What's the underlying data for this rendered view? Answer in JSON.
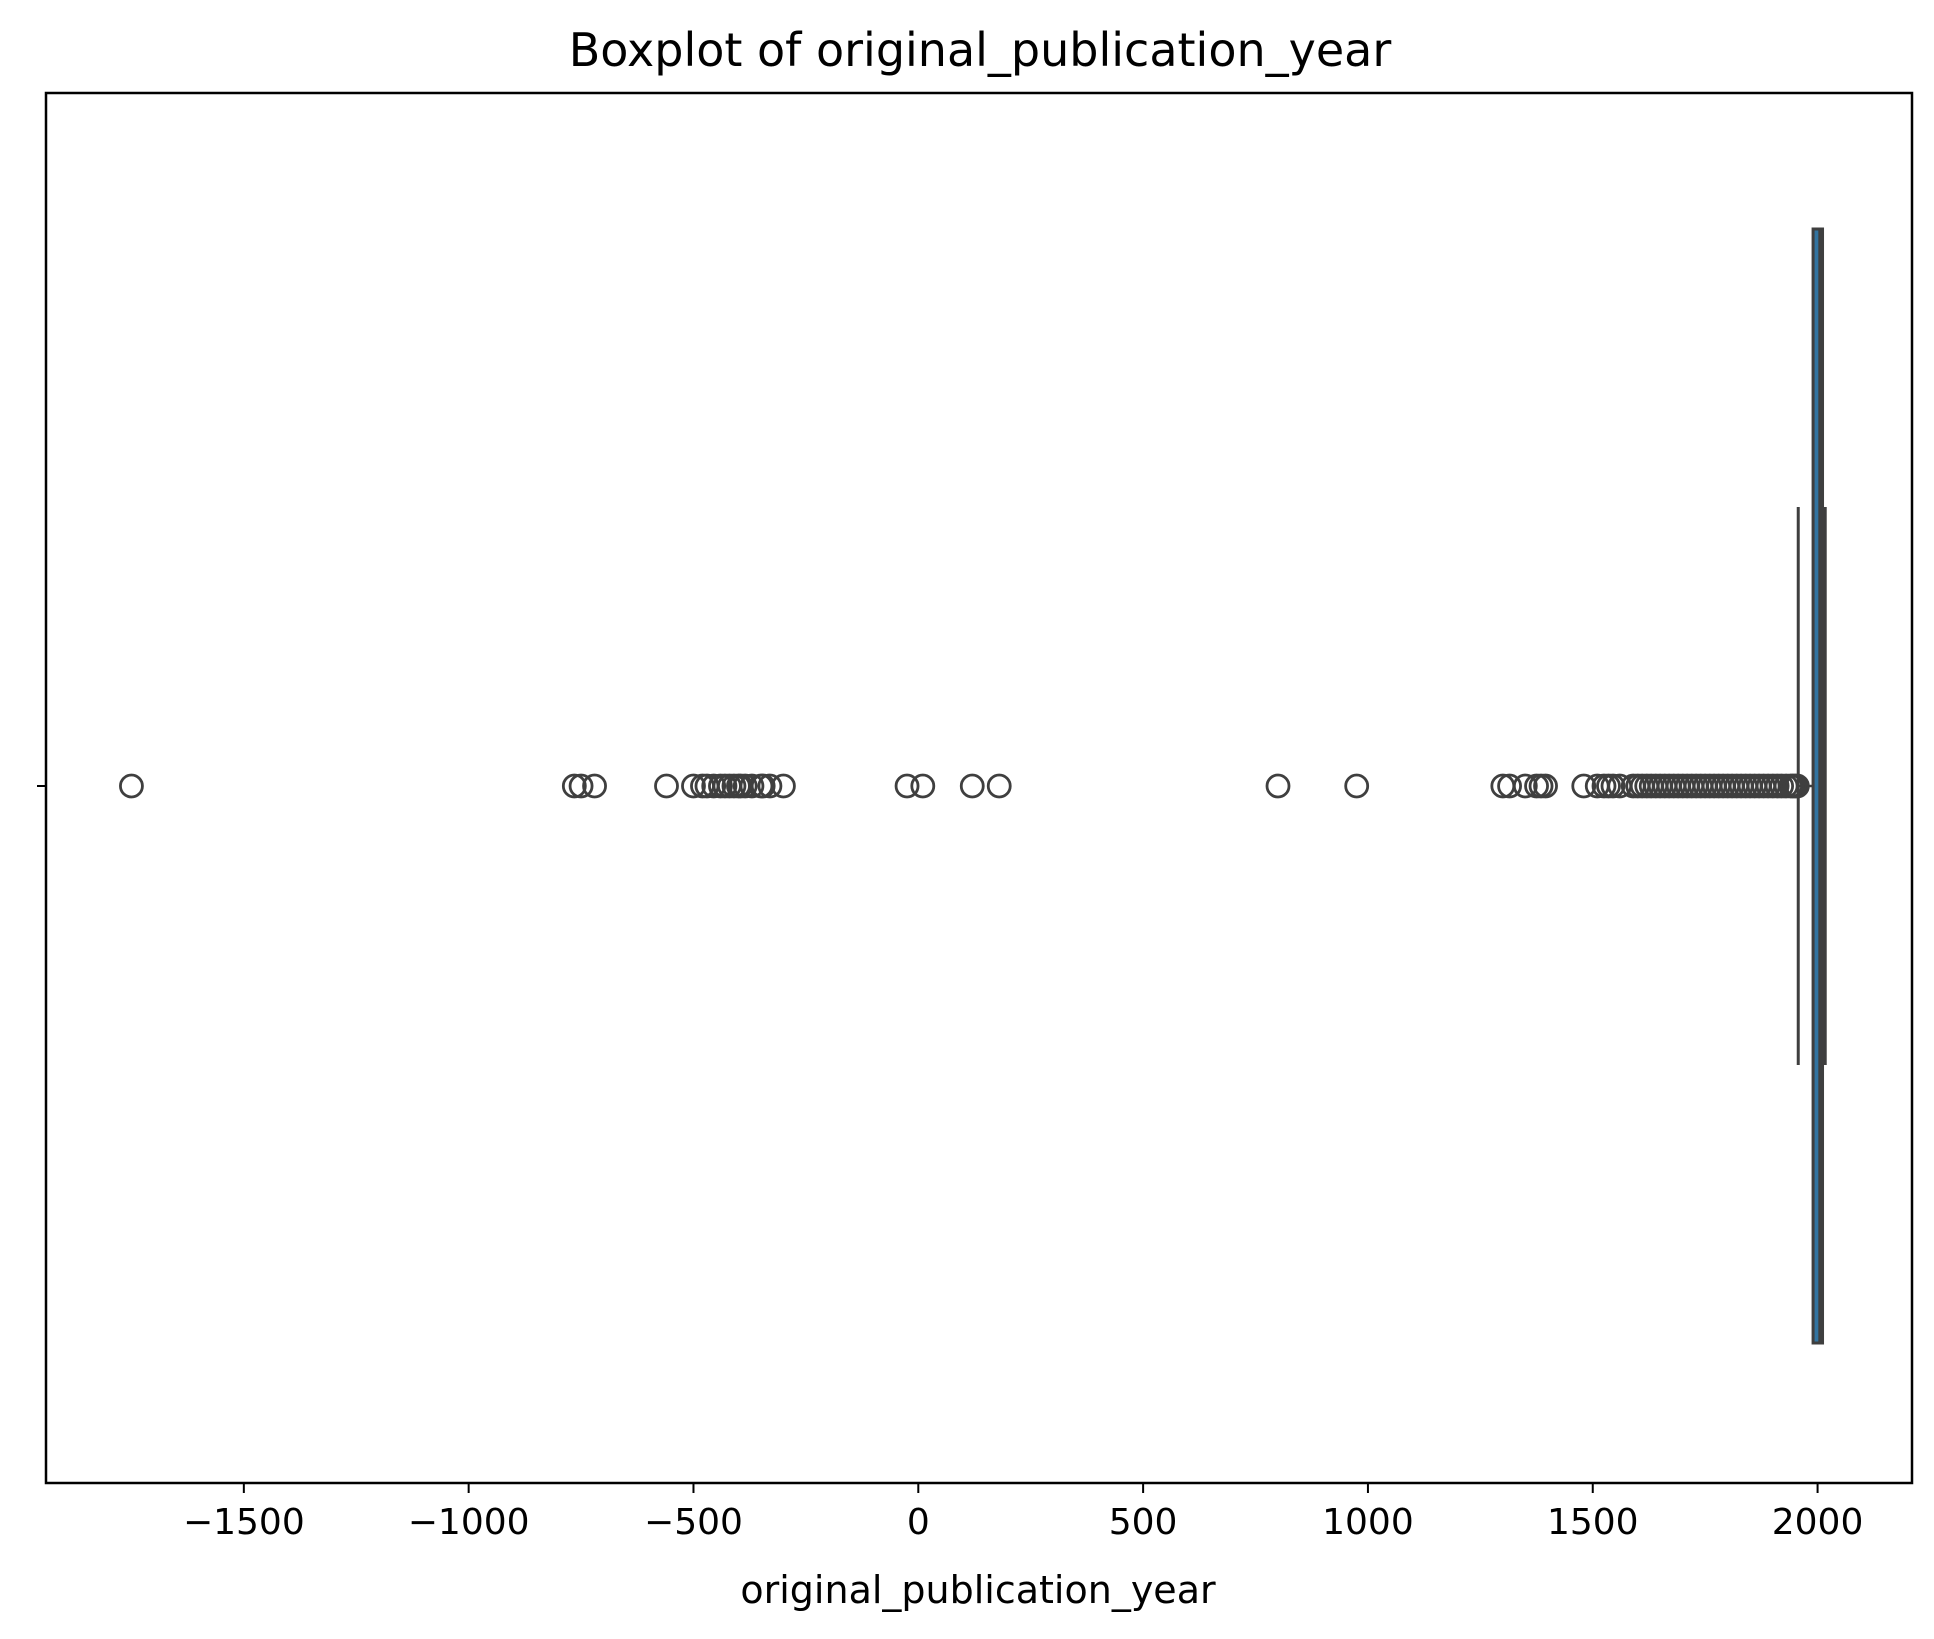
{
  "chart_data": {
    "type": "box",
    "orientation": "horizontal",
    "title": "Boxplot of original_publication_year",
    "xlabel": "original_publication_year",
    "ylabel": "",
    "xlim": [
      -1940,
      2210
    ],
    "x_ticks": [
      -1500,
      -1000,
      -500,
      0,
      500,
      1000,
      1500,
      2000
    ],
    "x_tick_labels": [
      "−1500",
      "−1000",
      "−500",
      "0",
      "500",
      "1000",
      "1500",
      "2000"
    ],
    "grid": false,
    "box": {
      "whisker_low": 1957,
      "q1": 1990,
      "median": 2005,
      "q3": 2011,
      "whisker_high": 2017
    },
    "outliers": [
      -1750,
      -765,
      -750,
      -720,
      -560,
      -500,
      -480,
      -470,
      -455,
      -440,
      -430,
      -420,
      -410,
      -400,
      -395,
      -385,
      -370,
      -350,
      -345,
      -330,
      -300,
      -25,
      10,
      120,
      180,
      800,
      975,
      1300,
      1315,
      1350,
      1375,
      1385,
      1395,
      1480,
      1510,
      1525,
      1535,
      1545,
      1560,
      1590,
      1600,
      1610,
      1620,
      1630,
      1640,
      1650,
      1660,
      1670,
      1680,
      1690,
      1700,
      1710,
      1720,
      1730,
      1740,
      1750,
      1760,
      1770,
      1780,
      1790,
      1800,
      1810,
      1820,
      1830,
      1840,
      1850,
      1860,
      1870,
      1880,
      1890,
      1900,
      1910,
      1920,
      1930,
      1940,
      1945,
      1950,
      1955
    ],
    "colors": {
      "box_fill": "#3274a1",
      "box_edge": "#3f3f3f",
      "outlier_edge": "#3f3f3f",
      "axes": "#000000"
    }
  }
}
